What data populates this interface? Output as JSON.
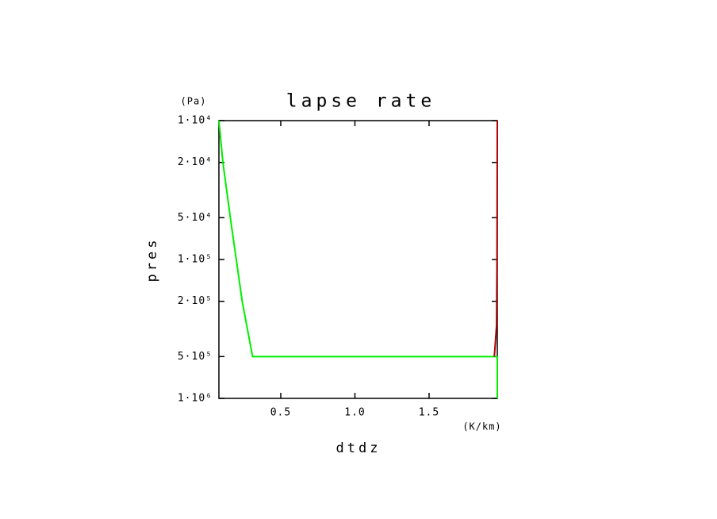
{
  "chart_data": {
    "type": "line",
    "title": "lapse rate",
    "x_label": "dtdz",
    "x_unit": "(K/km)",
    "y_label": "pres",
    "y_unit": "(Pa)",
    "xlim": [
      0.083,
      1.96
    ],
    "xticks": [
      0.5,
      {
        "value": 1,
        "label": "1.0"
      },
      1.5
    ],
    "ylim": [
      1000000,
      10000
    ],
    "ylog": true,
    "yticks": [
      {
        "value": 10000,
        "label": "1·10⁴"
      },
      {
        "value": 20000,
        "label": "2·10⁴"
      },
      {
        "value": 50000,
        "label": "5·10⁴"
      },
      {
        "value": 100000,
        "label": "1·10⁵"
      },
      {
        "value": 200000,
        "label": "2·10⁵"
      },
      {
        "value": 500000,
        "label": "5·10⁵"
      },
      {
        "value": 1000000,
        "label": "1·10⁶"
      }
    ],
    "series": [
      {
        "color": "#00ee00",
        "x": [
          0.083,
          0.11,
          0.16,
          0.2,
          0.24,
          0.31,
          1.96,
          1.96
        ],
        "values": [
          10000,
          20000,
          50000,
          100000,
          200000,
          500000,
          500000,
          1000000
        ]
      },
      {
        "color": "#b00000",
        "x": [
          1.96,
          1.958,
          1.955,
          1.94
        ],
        "values": [
          10000,
          100000,
          300000,
          500000
        ]
      }
    ]
  }
}
